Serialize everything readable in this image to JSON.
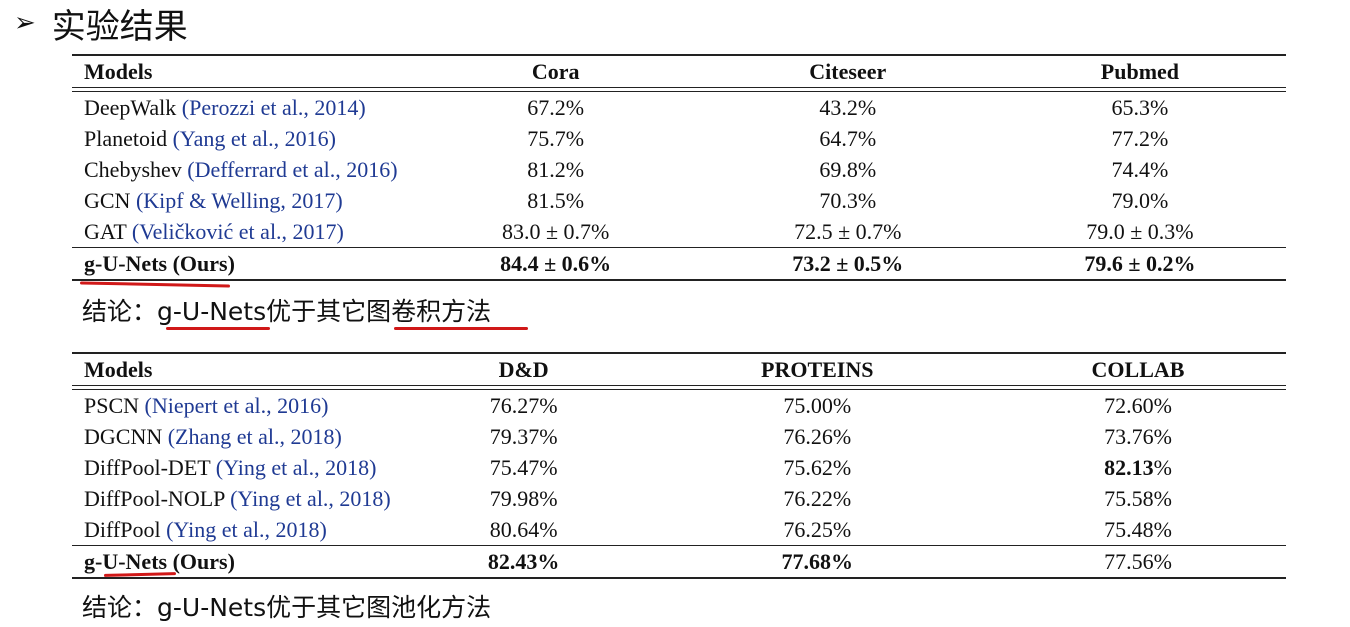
{
  "heading": {
    "bullet": "➢",
    "title": "实验结果"
  },
  "table1": {
    "headers": [
      "Models",
      "Cora",
      "Citeseer",
      "Pubmed"
    ],
    "rows": [
      {
        "model": "DeepWalk",
        "cite": "(Perozzi et al., 2014)",
        "v1": "67.2%",
        "v2": "43.2%",
        "v3": "65.3%"
      },
      {
        "model": "Planetoid",
        "cite": "(Yang et al., 2016)",
        "v1": "75.7%",
        "v2": "64.7%",
        "v3": "77.2%"
      },
      {
        "model": "Chebyshev",
        "cite": "(Defferrard et al., 2016)",
        "v1": "81.2%",
        "v2": "69.8%",
        "v3": "74.4%"
      },
      {
        "model": "GCN",
        "cite": "(Kipf & Welling, 2017)",
        "v1": "81.5%",
        "v2": "70.3%",
        "v3": "79.0%"
      },
      {
        "model": "GAT",
        "cite": "(Veličković et al., 2017)",
        "v1": "83.0 ± 0.7%",
        "v2": "72.5 ± 0.7%",
        "v3": "79.0 ± 0.3%"
      }
    ],
    "ours": {
      "model": "g-U-Nets (Ours)",
      "v1": "84.4 ± 0.6%",
      "v2": "73.2 ± 0.5%",
      "v3": "79.6 ± 0.2%"
    }
  },
  "conclusion1": {
    "prefix": "结论：",
    "subject": "g-U-Nets",
    "middle": "优于其它",
    "tail": "图卷积方法"
  },
  "table2": {
    "headers": [
      "Models",
      "D&D",
      "PROTEINS",
      "COLLAB"
    ],
    "rows": [
      {
        "model": "PSCN",
        "cite": "(Niepert et al., 2016)",
        "v1": "76.27%",
        "v2": "75.00%",
        "v3": "72.60%"
      },
      {
        "model": "DGCNN",
        "cite": "(Zhang et al., 2018)",
        "v1": "79.37%",
        "v2": "76.26%",
        "v3": "73.76%"
      },
      {
        "model": "DiffPool-DET",
        "cite": "(Ying et al., 2018)",
        "v1": "75.47%",
        "v2": "75.62%",
        "v3_bold": "82.13",
        "v3_rest": "%"
      },
      {
        "model": "DiffPool-NOLP",
        "cite": "(Ying et al., 2018)",
        "v1": "79.98%",
        "v2": "76.22%",
        "v3": "75.58%"
      },
      {
        "model": "DiffPool",
        "cite": "(Ying et al., 2018)",
        "v1": "80.64%",
        "v2": "76.25%",
        "v3": "75.48%"
      }
    ],
    "ours": {
      "model_bold": "g-U-Nets",
      "model_rest": " (Ours)",
      "v1": "82.43%",
      "v2": "77.68%",
      "v3": "77.56%"
    }
  },
  "conclusion2": {
    "text": "结论：g-U-Nets优于其它图池化方法"
  },
  "colors": {
    "citation": "#1f3a93",
    "underline": "#d01818"
  }
}
